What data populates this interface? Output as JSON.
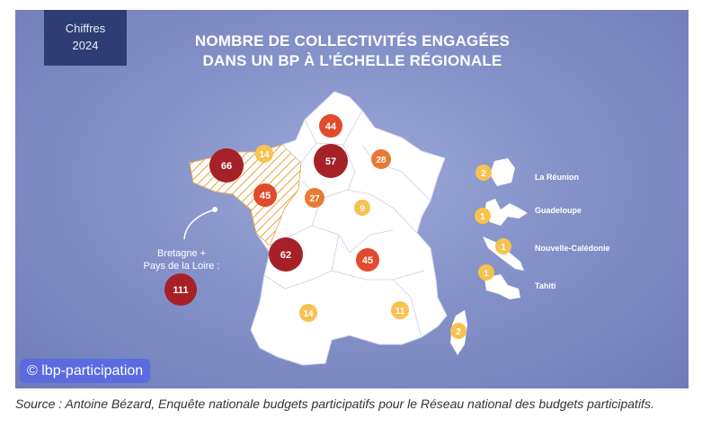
{
  "badge": {
    "line1": "Chiffres",
    "line2": "2024"
  },
  "title": {
    "line1": "NOMBRE DE COLLECTIVITÉS ENGAGÉES",
    "line2": "DANS UN BP À L’ÉCHELLE RÉGIONALE"
  },
  "callout": {
    "line1": "Bretagne +",
    "line2": "Pays de la Loire :",
    "value": "111"
  },
  "regions": [
    {
      "name": "Hauts-de-France",
      "value": "44"
    },
    {
      "name": "Normandie",
      "value": "14"
    },
    {
      "name": "Bretagne",
      "value": "66"
    },
    {
      "name": "Île-de-France",
      "value": "57"
    },
    {
      "name": "Grand Est",
      "value": "28"
    },
    {
      "name": "Pays de la Loire",
      "value": "45"
    },
    {
      "name": "Centre-Val de Loire",
      "value": "27"
    },
    {
      "name": "Bourgogne-Franche-Comté",
      "value": "9"
    },
    {
      "name": "Nouvelle-Aquitaine",
      "value": "62"
    },
    {
      "name": "Auvergne-Rhône-Alpes",
      "value": "45"
    },
    {
      "name": "Occitanie",
      "value": "14"
    },
    {
      "name": "Provence-Alpes-Côte d'Azur",
      "value": "11"
    },
    {
      "name": "Corse",
      "value": "2"
    }
  ],
  "overseas": [
    {
      "name": "La Réunion",
      "value": "2"
    },
    {
      "name": "Guadeloupe",
      "value": "1"
    },
    {
      "name": "Nouvelle-Calédonie",
      "value": "1"
    },
    {
      "name": "Tahiti",
      "value": "1"
    }
  ],
  "colors": {
    "dark_red": "#a52127",
    "red": "#e14a2c",
    "orange": "#ea7a33",
    "yellow": "#f7c24e",
    "hatch": "#e7a13c",
    "land": "#ffffff",
    "background": "#8592c9"
  },
  "copyright": "© lbp-participation",
  "caption": "Source : Antoine Bézard, Enquête nationale budgets participatifs pour le Réseau national des budgets participatifs."
}
